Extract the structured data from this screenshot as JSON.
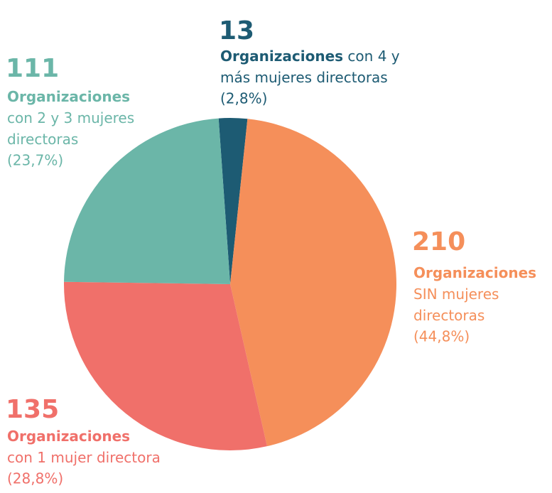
{
  "chart_data": {
    "type": "pie",
    "values": [
      13,
      210,
      135,
      111
    ],
    "colors": [
      "#1d5b73",
      "#f58f5a",
      "#f0706a",
      "#6bb6a8"
    ],
    "lead_label": "Organizaciones",
    "label_lines": [
      [
        " con 4 y",
        "más mujeres directoras"
      ],
      [
        "",
        "SIN mujeres",
        "directoras"
      ],
      [
        "",
        "con 1 mujer directora"
      ],
      [
        "",
        "con 2 y 3 mujeres",
        "directoras"
      ]
    ],
    "percent_labels": [
      "(2,8%)",
      "(44,8%)",
      "(28,8%)",
      "(23,7%)"
    ]
  }
}
